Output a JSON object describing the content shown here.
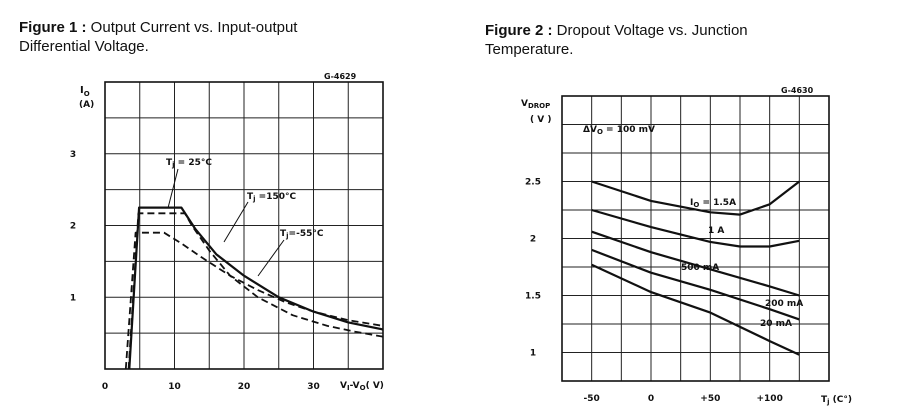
{
  "figures": [
    {
      "caption_label": "Figure 1 :",
      "caption_text_1": " Output Current vs. Input-output",
      "caption_text_2": "Differential Voltage.",
      "code": "G-4629"
    },
    {
      "caption_label": "Figure 2 :",
      "caption_text_1": " Dropout Voltage vs. Junction",
      "caption_text_2": "Temperature.",
      "code": "G-4630"
    }
  ],
  "chart_data": [
    {
      "type": "line",
      "title": "Figure 1 : Output Current vs. Input-output Differential Voltage.",
      "ylabel": "IO (A)",
      "xlabel": "VI-VO (V)",
      "xlim": [
        0,
        40
      ],
      "ylim": [
        0,
        4
      ],
      "x_ticks": [
        "0",
        "10",
        "20",
        "30"
      ],
      "x_tick_values": [
        0,
        10,
        20,
        30
      ],
      "y_ticks": [
        "1",
        "2",
        "3"
      ],
      "y_tick_values": [
        1,
        2,
        3
      ],
      "grid": true,
      "series": [
        {
          "name": "Tj = 25°C",
          "style": "solid",
          "points": [
            [
              3.5,
              0
            ],
            [
              4.9,
              2.25
            ],
            [
              11,
              2.25
            ],
            [
              13,
              1.95
            ],
            [
              16,
              1.6
            ],
            [
              20,
              1.3
            ],
            [
              25,
              1.0
            ],
            [
              30,
              0.8
            ],
            [
              35,
              0.65
            ],
            [
              40,
              0.55
            ]
          ]
        },
        {
          "name": "Tj = 150°C",
          "style": "dashed",
          "points": [
            [
              3.4,
              0
            ],
            [
              4.8,
              2.17
            ],
            [
              11.5,
              2.17
            ],
            [
              12.5,
              2.0
            ],
            [
              15,
              1.65
            ],
            [
              18,
              1.3
            ],
            [
              22,
              1.0
            ],
            [
              27,
              0.75
            ],
            [
              32,
              0.6
            ],
            [
              36,
              0.52
            ],
            [
              40,
              0.45
            ]
          ]
        },
        {
          "name": "Tj = -55°C",
          "style": "dashed",
          "points": [
            [
              3,
              0
            ],
            [
              4.4,
              1.9
            ],
            [
              8.5,
              1.9
            ],
            [
              11,
              1.75
            ],
            [
              14,
              1.55
            ],
            [
              18,
              1.3
            ],
            [
              22,
              1.1
            ],
            [
              26,
              0.93
            ],
            [
              30,
              0.8
            ],
            [
              35,
              0.68
            ],
            [
              40,
              0.6
            ]
          ]
        }
      ],
      "annotations": [
        {
          "text": "Tj = 25°C"
        },
        {
          "text": "Tj = 150°C"
        },
        {
          "text": "Tj = -55°C"
        }
      ]
    },
    {
      "type": "line",
      "title": "Figure 2 : Dropout Voltage vs. Junction Temperature.",
      "ylabel": "VDROP (V)",
      "xlabel": "Tj (°C)",
      "xlim": [
        -75,
        150
      ],
      "ylim": [
        0.75,
        3.25
      ],
      "x_ticks": [
        "-50",
        "0",
        "+50",
        "+100"
      ],
      "x_tick_values": [
        -50,
        0,
        50,
        100
      ],
      "y_ticks": [
        "1",
        "1.5",
        "2",
        "2.5"
      ],
      "y_tick_values": [
        1,
        1.5,
        2,
        2.5
      ],
      "grid": true,
      "annotations": [
        {
          "text": "ΔVO = 100 mV"
        },
        {
          "text": "IO = 1.5A"
        },
        {
          "text": "1 A"
        },
        {
          "text": "500 mA"
        },
        {
          "text": "200 mA"
        },
        {
          "text": "20 mA"
        }
      ],
      "series": [
        {
          "name": "IO = 1.5A",
          "points": [
            [
              -50,
              2.5
            ],
            [
              0,
              2.33
            ],
            [
              50,
              2.23
            ],
            [
              75,
              2.21
            ],
            [
              100,
              2.3
            ],
            [
              125,
              2.5
            ]
          ]
        },
        {
          "name": "1 A",
          "points": [
            [
              -50,
              2.25
            ],
            [
              0,
              2.1
            ],
            [
              50,
              1.97
            ],
            [
              75,
              1.93
            ],
            [
              100,
              1.93
            ],
            [
              125,
              1.98
            ]
          ]
        },
        {
          "name": "500 mA",
          "points": [
            [
              -50,
              2.06
            ],
            [
              0,
              1.88
            ],
            [
              50,
              1.73
            ],
            [
              100,
              1.58
            ],
            [
              125,
              1.5
            ]
          ]
        },
        {
          "name": "200 mA",
          "points": [
            [
              -50,
              1.9
            ],
            [
              0,
              1.7
            ],
            [
              50,
              1.55
            ],
            [
              100,
              1.38
            ],
            [
              125,
              1.29
            ]
          ]
        },
        {
          "name": "20 mA",
          "points": [
            [
              -50,
              1.77
            ],
            [
              0,
              1.53
            ],
            [
              50,
              1.35
            ],
            [
              100,
              1.1
            ],
            [
              125,
              0.98
            ]
          ]
        }
      ]
    }
  ]
}
